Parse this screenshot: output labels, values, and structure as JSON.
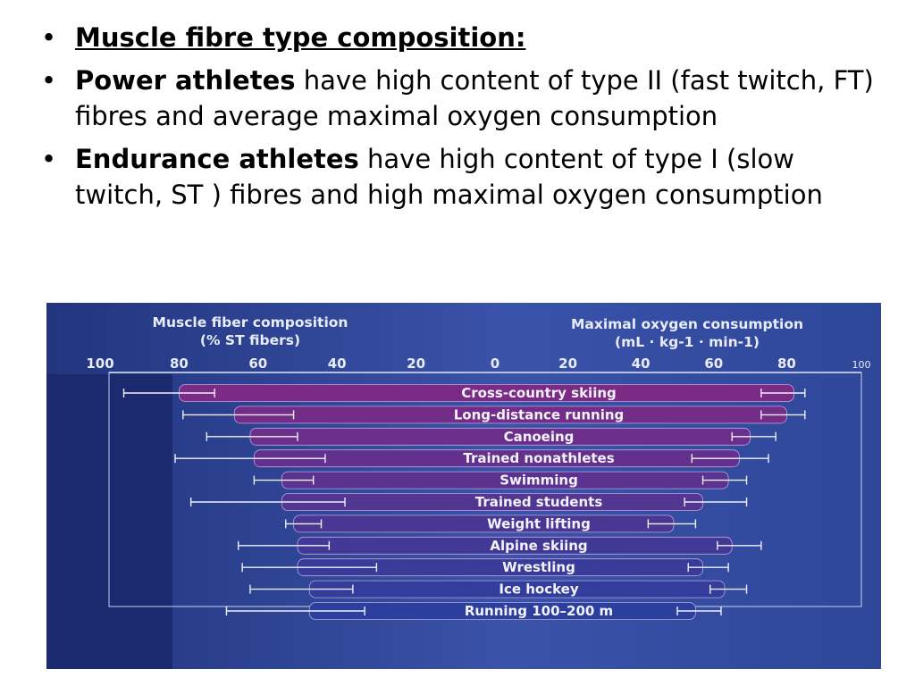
{
  "bullets": [
    {
      "lead": "Muscle fibre type composition:",
      "text": ""
    },
    {
      "lead": "Power athletes",
      "text": " have high content of type II (fast twitch, FT) fibres and average maximal oxygen consumption"
    },
    {
      "lead": "Endurance athletes",
      "text": " have high content of type I (slow twitch, ST ) fibres and high maximal oxygen consumption"
    }
  ],
  "colors": {
    "background_dark": "#1d2d72",
    "background_mid": "#3a52a8",
    "bar_top": "#7b2a86",
    "bar_bottom": "#2a3f9e",
    "text": "#e8ecf8"
  },
  "chart_data": {
    "type": "bar",
    "layout": "diverging-horizontal",
    "left_panel": {
      "title_line1": "Muscle fiber composition",
      "title_line2": "(% ST fibers)",
      "ticks": [
        "100",
        "80",
        "60",
        "40",
        "20",
        "0"
      ],
      "xlim": [
        100,
        0
      ]
    },
    "right_panel": {
      "title_line1": "Maximal oxygen consumption",
      "title_line2": "(mL · kg-1 · min-1)",
      "ticks": [
        "0",
        "20",
        "40",
        "60",
        "80",
        "100"
      ],
      "xlim": [
        0,
        100
      ]
    },
    "categories": [
      "Cross-country skiing",
      "Long-distance running",
      "Canoeing",
      "Trained nonathletes",
      "Swimming",
      "Trained students",
      "Weight lifting",
      "Alpine skiing",
      "Wrestling",
      "Ice hockey",
      "Running 100–200 m"
    ],
    "series": [
      {
        "values": [
          80,
          66,
          62,
          61,
          54,
          54,
          51,
          50,
          50,
          47,
          47
        ],
        "range_min": [
          71,
          51,
          50,
          43,
          46,
          38,
          44,
          42,
          30,
          36,
          33
        ],
        "range_max": [
          94,
          79,
          73,
          81,
          61,
          77,
          53,
          65,
          64,
          62,
          68
        ]
      },
      {
        "values": [
          82,
          80,
          70,
          67,
          64,
          57,
          49,
          65,
          57,
          63,
          55
        ],
        "range_min": [
          73,
          73,
          65,
          54,
          57,
          52,
          42,
          61,
          53,
          59,
          50
        ],
        "range_max": [
          85,
          85,
          77,
          75,
          69,
          69,
          55,
          73,
          64,
          69,
          62
        ]
      }
    ]
  }
}
